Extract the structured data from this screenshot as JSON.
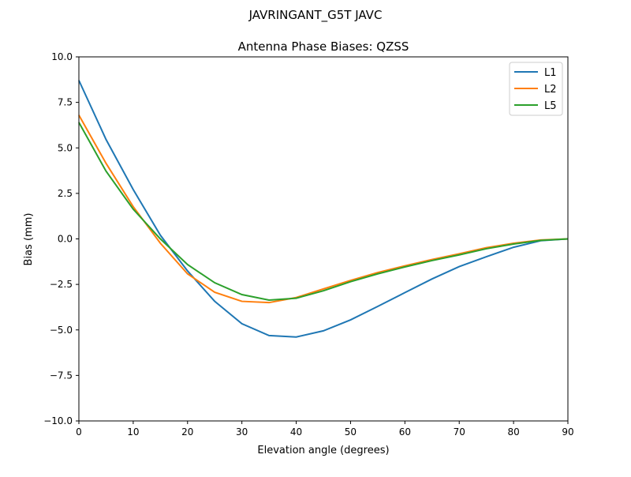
{
  "suptitle": "JAVRINGANT_G5T  JAVC",
  "chart_data": {
    "type": "line",
    "title": "Antenna Phase Biases: QZSS",
    "xlabel": "Elevation angle (degrees)",
    "ylabel": "Bias (mm)",
    "xlim": [
      0,
      90
    ],
    "ylim": [
      -10,
      10
    ],
    "xticks": [
      0,
      10,
      20,
      30,
      40,
      50,
      60,
      70,
      80,
      90
    ],
    "xtick_labels": [
      "0",
      "10",
      "20",
      "30",
      "40",
      "50",
      "60",
      "70",
      "80",
      "90"
    ],
    "yticks": [
      -10,
      -7.5,
      -5,
      -2.5,
      0,
      2.5,
      5,
      7.5,
      10
    ],
    "ytick_labels": [
      "−10.0",
      "−7.5",
      "−5.0",
      "−2.5",
      "0.0",
      "2.5",
      "5.0",
      "7.5",
      "10.0"
    ],
    "grid": false,
    "legend_position": "top-right",
    "x": [
      0,
      5,
      10,
      15,
      20,
      25,
      30,
      35,
      40,
      45,
      50,
      55,
      60,
      65,
      70,
      75,
      80,
      85,
      90
    ],
    "series": [
      {
        "name": "L1",
        "color": "#1f77b4",
        "values": [
          8.71,
          5.46,
          2.71,
          0.2,
          -1.76,
          -3.43,
          -4.66,
          -5.31,
          -5.39,
          -5.05,
          -4.45,
          -3.71,
          -2.95,
          -2.2,
          -1.52,
          -0.98,
          -0.46,
          -0.1,
          0
        ]
      },
      {
        "name": "L2",
        "color": "#ff7f0e",
        "values": [
          6.8,
          4.15,
          1.77,
          -0.24,
          -1.92,
          -2.93,
          -3.43,
          -3.5,
          -3.22,
          -2.75,
          -2.28,
          -1.85,
          -1.48,
          -1.13,
          -0.82,
          -0.48,
          -0.24,
          -0.06,
          0
        ]
      },
      {
        "name": "L5",
        "color": "#2ca02c",
        "values": [
          6.4,
          3.72,
          1.63,
          0,
          -1.41,
          -2.41,
          -3.06,
          -3.36,
          -3.26,
          -2.85,
          -2.35,
          -1.92,
          -1.54,
          -1.19,
          -0.88,
          -0.54,
          -0.28,
          -0.08,
          0
        ]
      }
    ]
  }
}
